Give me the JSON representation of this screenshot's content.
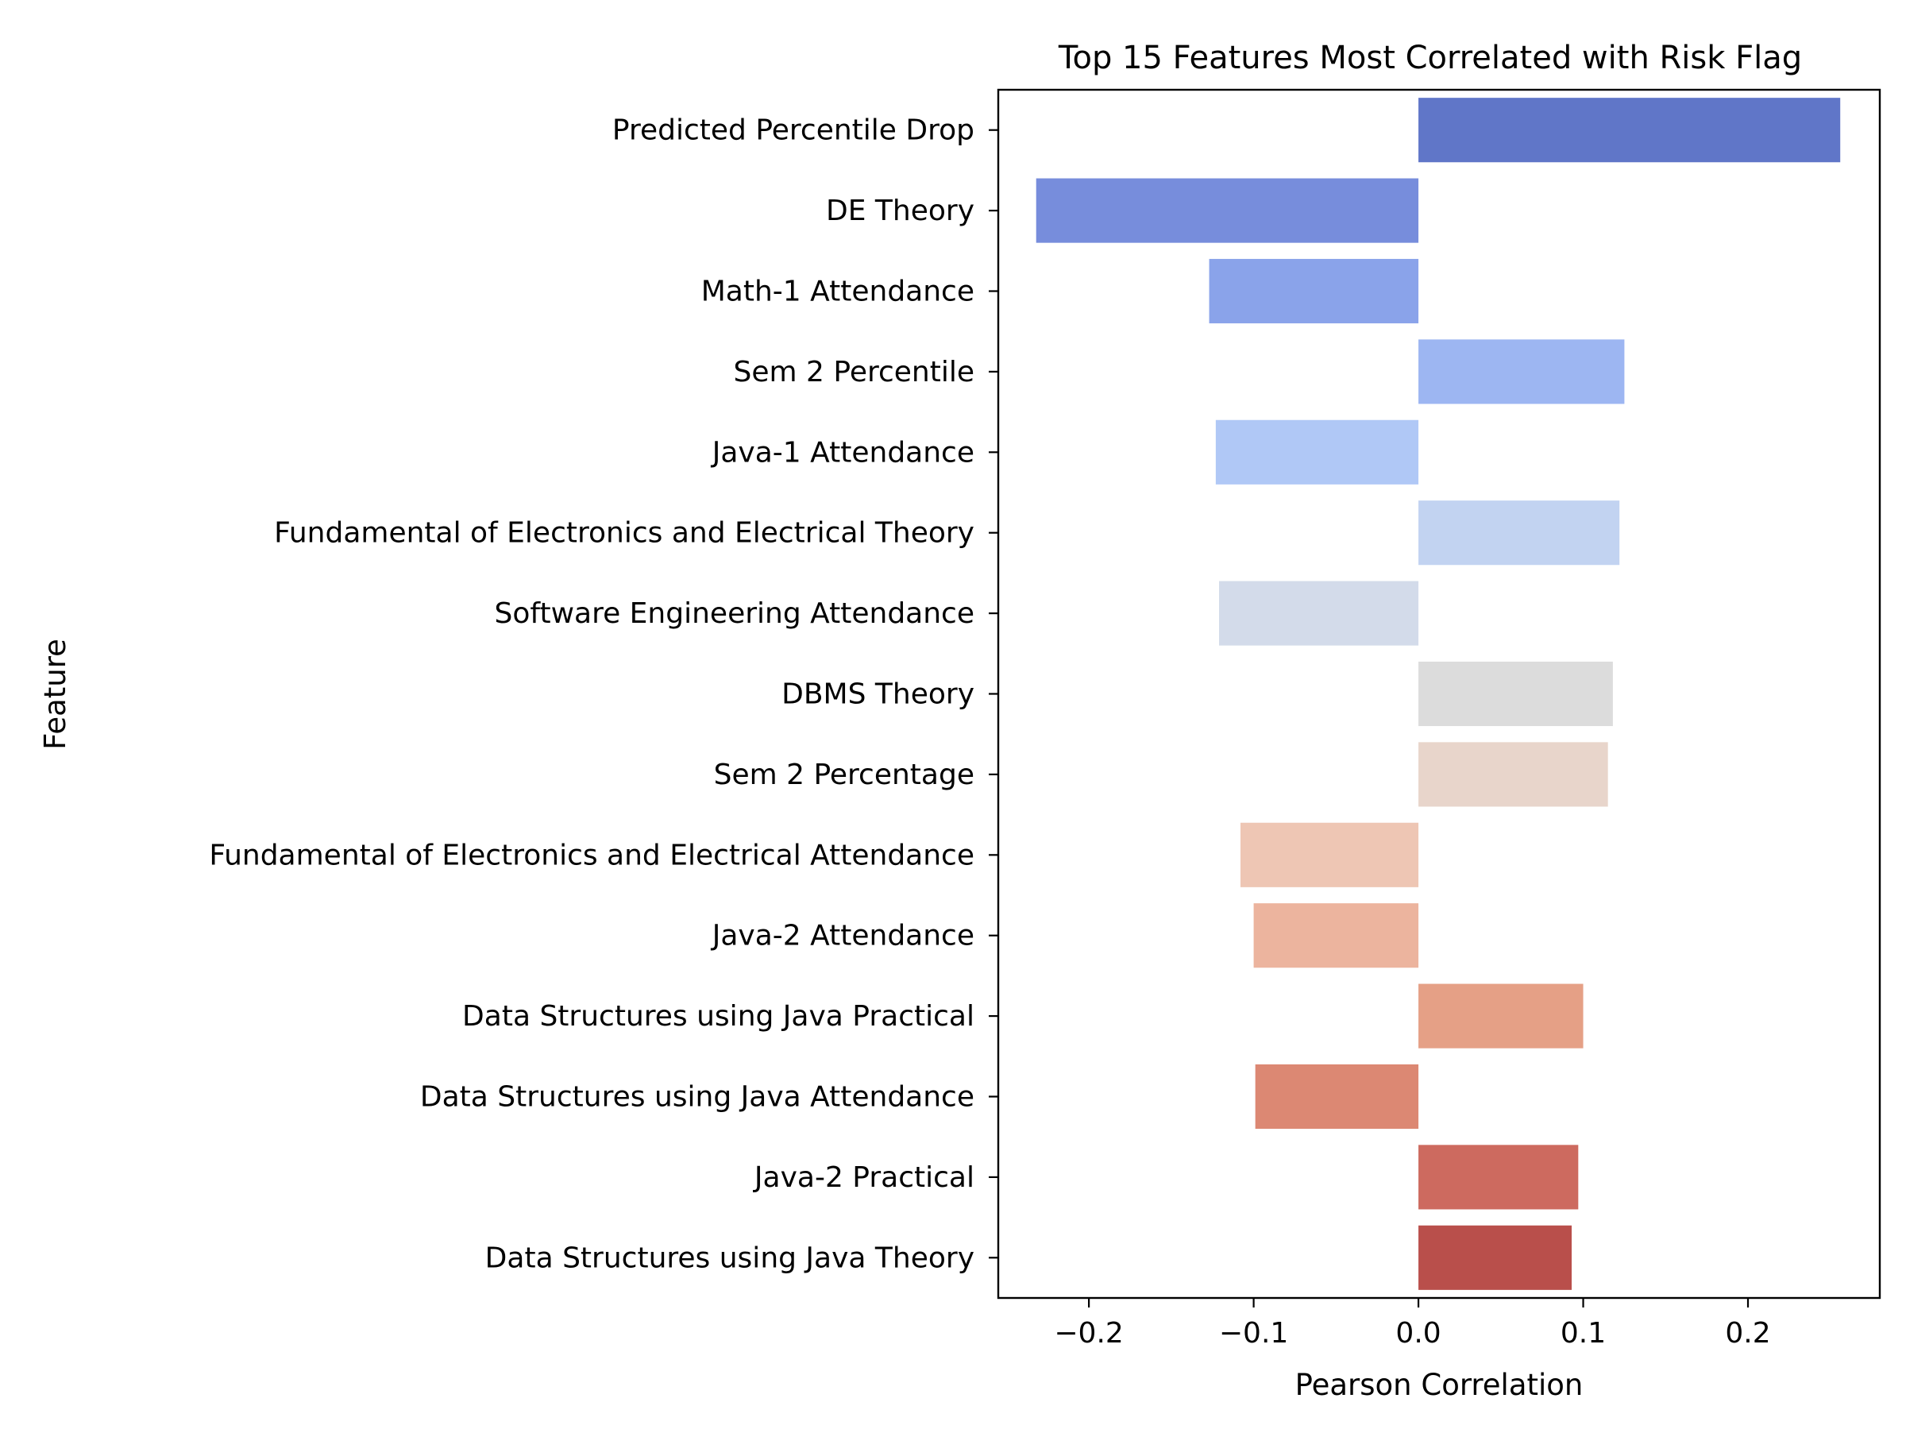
{
  "chart_data": {
    "type": "bar",
    "orientation": "horizontal",
    "title": "Top 15 Features Most Correlated with Risk Flag",
    "xlabel": "Pearson Correlation",
    "ylabel": "Feature",
    "xlim": [
      -0.255,
      0.28
    ],
    "xticks": [
      -0.2,
      -0.1,
      0.0,
      0.1,
      0.2
    ],
    "xtick_labels": [
      "−0.2",
      "−0.1",
      "0.0",
      "0.1",
      "0.2"
    ],
    "grid": false,
    "legend": "none",
    "categories": [
      "Predicted Percentile Drop",
      "DE Theory",
      "Math-1 Attendance",
      "Sem 2 Percentile",
      "Java-1 Attendance",
      "Fundamental of Electronics and Electrical Theory",
      "Software Engineering Attendance",
      "DBMS Theory",
      "Sem 2 Percentage",
      "Fundamental of Electronics and Electrical Attendance",
      "Java-2 Attendance",
      "Data Structures using Java Practical",
      "Data Structures using Java Attendance",
      "Java-2 Practical",
      "Data Structures using Java Theory"
    ],
    "values": [
      0.256,
      -0.232,
      -0.127,
      0.125,
      -0.123,
      0.122,
      -0.121,
      0.118,
      0.115,
      -0.108,
      -0.1,
      0.1,
      -0.099,
      0.097,
      0.093
    ],
    "colors": [
      "#6076c8",
      "#778ddc",
      "#8aa3ea",
      "#9db6f2",
      "#b0c8f6",
      "#c2d3f1",
      "#d3dbea",
      "#dcdcdc",
      "#e8d5cb",
      "#eec6b4",
      "#ecb49e",
      "#e5a086",
      "#dc8873",
      "#cd6a5f",
      "#b94f4b"
    ]
  }
}
